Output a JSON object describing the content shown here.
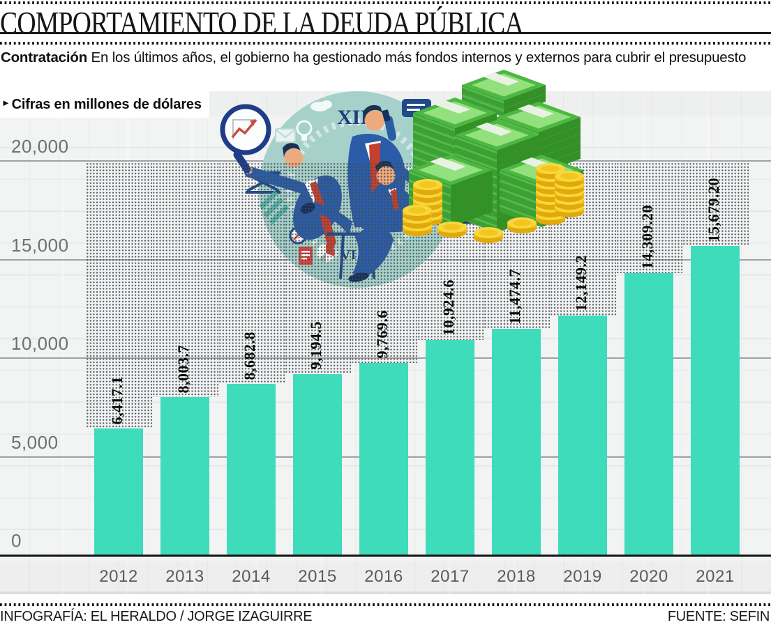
{
  "header": {
    "title": "COMPORTAMIENTO DE LA DEUDA PÚBLICA",
    "lede_bold": "Contratación",
    "lede_rest": " En los últimos años, el gobierno ha gestionado más fondos internos y externos para cubrir el presupuesto",
    "units_marker": "►",
    "units_label": "Cifras en millones de dólares"
  },
  "footer": {
    "credit": "INFOGRAFÍA: EL HERALDO / JORGE IZAGUIRRE",
    "source": "FUENTE: SEFIN"
  },
  "chart_data": {
    "type": "bar",
    "title": "Comportamiento de la deuda pública",
    "units": "millones de dólares",
    "categories": [
      "2012",
      "2013",
      "2014",
      "2015",
      "2016",
      "2017",
      "2018",
      "2019",
      "2020",
      "2021"
    ],
    "values": [
      6417.1,
      8003.7,
      8682.8,
      9194.5,
      9769.6,
      10924.6,
      11474.7,
      12149.2,
      14309.2,
      15679.2
    ],
    "value_labels": [
      "6,417.1",
      "8,003.7",
      "8,682.8",
      "9,194.5",
      "9,769.6",
      "10,924.6",
      "11,474.7",
      "12,149.2",
      "14,309.20",
      "15,679.20"
    ],
    "y_ticks": [
      {
        "label": "20,000",
        "value": 20000
      },
      {
        "label": "15,000",
        "value": 15000
      },
      {
        "label": "10,000",
        "value": 10000
      },
      {
        "label": "5,000",
        "value": 5000
      },
      {
        "label": "0",
        "value": 0
      }
    ],
    "ylim": [
      0,
      20000
    ],
    "xlabel": "",
    "ylabel": "",
    "grid": true,
    "legend": false,
    "bar_color": "#3edcba",
    "gridline_color": "#a0a1a3",
    "label_color": "#0b0b0b"
  },
  "illustration": {
    "description": "Tres empresarios multitarea sobre un círculo de reloj junto a una pila de fajos de billetes y monedas de oro",
    "icons": [
      "magnifying-glass-chart-icon",
      "clock-icon",
      "envelope-icon",
      "lightbulb-icon",
      "cloud-icon",
      "speech-bubble-icon",
      "globe-icon",
      "trophy-icon",
      "compass-icon",
      "pie-chart-icon",
      "document-icon",
      "laptop-icon",
      "money-stack-icon",
      "gold-coins-icon"
    ],
    "palette": {
      "circle": "#a6d1cb",
      "suit": "#2a5ca8",
      "tie": "#c6402f",
      "money_top": "#4db841",
      "money_side": "#3da034",
      "coin": "#f8d73e"
    }
  }
}
